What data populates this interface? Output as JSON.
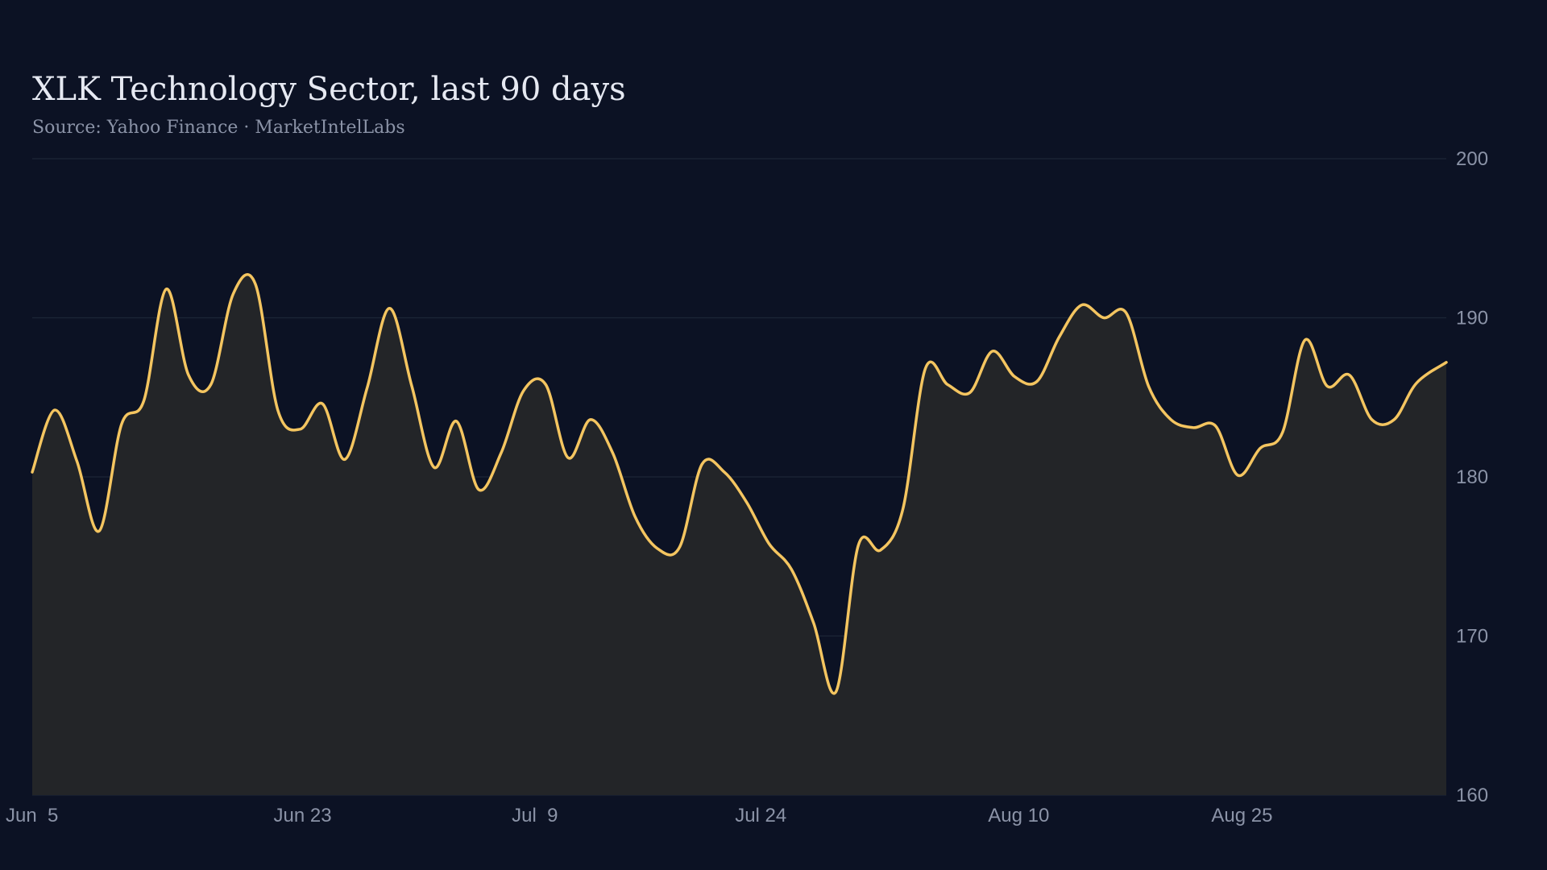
{
  "chart_data": {
    "type": "area",
    "title": "XLK Technology Sector, last 90 days",
    "subtitle": "Source: Yahoo Finance · MarketIntelLabs",
    "xlabel": "",
    "ylabel": "",
    "x_tick_labels": [
      "Jun  5",
      "Jun 23",
      "Jul  9",
      "Jul 24",
      "Aug 10",
      "Aug 25"
    ],
    "x_tick_days": [
      0,
      18,
      34,
      49,
      66,
      81
    ],
    "y_ticks": [
      160,
      170,
      180,
      190,
      200
    ],
    "ylim": [
      160,
      200
    ],
    "xlim_days": [
      0,
      95
    ],
    "grid": "horizontal",
    "legend": "none",
    "colors": {
      "background": "#0c1224",
      "line": "#f4c560",
      "fill": "#232528",
      "grid": "#1c2636",
      "text": "#8b93a7",
      "title": "#e6e9f2"
    },
    "series": [
      {
        "values": [
          [
            0,
            180.3
          ],
          [
            1.5,
            184.2
          ],
          [
            3,
            181
          ],
          [
            4.5,
            176.6
          ],
          [
            6,
            183.3
          ],
          [
            7.5,
            184.8
          ],
          [
            9,
            191.8
          ],
          [
            10.5,
            186.4
          ],
          [
            12,
            185.8
          ],
          [
            13.5,
            191.5
          ],
          [
            15,
            192.1
          ],
          [
            16.5,
            184.2
          ],
          [
            18,
            183.0
          ],
          [
            19.5,
            184.6
          ],
          [
            21,
            181.1
          ],
          [
            22.5,
            185.6
          ],
          [
            24,
            190.6
          ],
          [
            25.5,
            185.7
          ],
          [
            27,
            180.6
          ],
          [
            28.5,
            183.5
          ],
          [
            30,
            179.2
          ],
          [
            31.5,
            181.5
          ],
          [
            33,
            185.4
          ],
          [
            34.5,
            185.8
          ],
          [
            36,
            181.2
          ],
          [
            37.5,
            183.6
          ],
          [
            39,
            181.5
          ],
          [
            40.5,
            177.5
          ],
          [
            42,
            175.5
          ],
          [
            43.5,
            175.6
          ],
          [
            45,
            180.8
          ],
          [
            46.5,
            180.3
          ],
          [
            48,
            178.4
          ],
          [
            49.5,
            175.8
          ],
          [
            51,
            174.2
          ],
          [
            52.5,
            170.8
          ],
          [
            54,
            166.5
          ],
          [
            55.5,
            175.7
          ],
          [
            57,
            175.4
          ],
          [
            58.5,
            178.0
          ],
          [
            60,
            186.8
          ],
          [
            61.5,
            185.8
          ],
          [
            63,
            185.3
          ],
          [
            64.5,
            187.9
          ],
          [
            66,
            186.3
          ],
          [
            67.5,
            186.0
          ],
          [
            69,
            188.8
          ],
          [
            70.5,
            190.8
          ],
          [
            72,
            190.0
          ],
          [
            73.5,
            190.3
          ],
          [
            75,
            185.7
          ],
          [
            76.5,
            183.6
          ],
          [
            78,
            183.1
          ],
          [
            79.5,
            183.2
          ],
          [
            81,
            180.1
          ],
          [
            82.5,
            181.8
          ],
          [
            84,
            182.8
          ],
          [
            85.5,
            188.6
          ],
          [
            87,
            185.7
          ],
          [
            88.5,
            186.4
          ],
          [
            90,
            183.6
          ],
          [
            91.5,
            183.6
          ],
          [
            93,
            185.9
          ],
          [
            95,
            187.2
          ]
        ]
      }
    ]
  }
}
